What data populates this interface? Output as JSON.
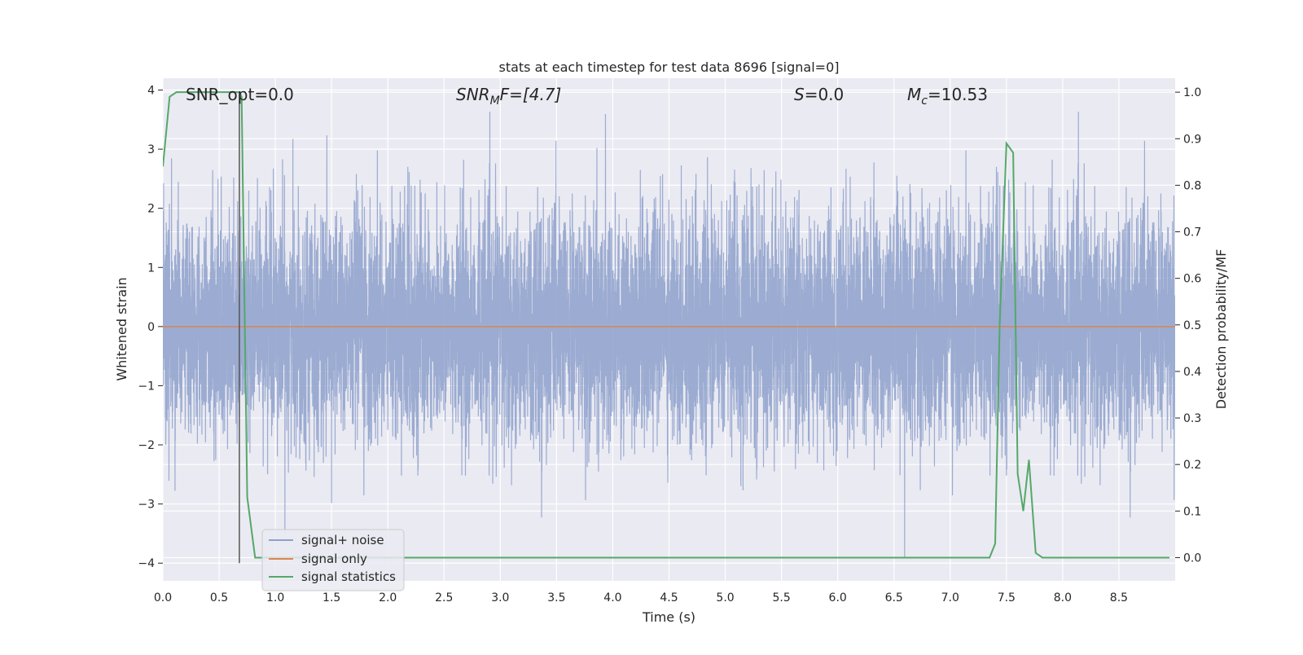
{
  "chart_data": {
    "type": "line",
    "title": "stats at each timestep for test data 8696 [signal=0]",
    "xlabel": "Time (s)",
    "ylabel": "Whitened strain",
    "y2label": "Detection probability/MF",
    "xlim": [
      0.0,
      9.0
    ],
    "ylim": [
      -4.3,
      4.2
    ],
    "y2lim": [
      -0.05,
      1.03
    ],
    "x_ticks": [
      "0.0",
      "0.5",
      "1.0",
      "1.5",
      "2.0",
      "2.5",
      "3.0",
      "3.5",
      "4.0",
      "4.5",
      "5.0",
      "5.5",
      "6.0",
      "6.5",
      "7.0",
      "7.5",
      "8.0",
      "8.5"
    ],
    "y_ticks": [
      "4",
      "3",
      "2",
      "1",
      "0",
      "−1",
      "−2",
      "−3",
      "−4"
    ],
    "y2_ticks": [
      "1.0",
      "0.9",
      "0.8",
      "0.7",
      "0.6",
      "0.5",
      "0.4",
      "0.3",
      "0.2",
      "0.1",
      "0.0"
    ],
    "grid": true,
    "legend_position": "lower-left",
    "annotations": {
      "snr_opt": "SNR_opt=0.0",
      "snr_mf_main": "SNR",
      "snr_mf_sub": "M",
      "snr_mf_rest": "F=[4.7]",
      "s_main": "S",
      "s_rest": "=0.0",
      "mc_main": "M",
      "mc_sub": "c",
      "mc_rest": "=10.53"
    },
    "marker_line_x": 0.68,
    "series": [
      {
        "name": "signal+ noise",
        "color": "#8da0cb",
        "axis": "left",
        "description_values": "dense whitened noise, amplitude mostly within ±2.4, spikes up to about ±3.6",
        "sample_rate_hz": 2048,
        "approx_std": 0.95
      },
      {
        "name": "signal only",
        "color": "#dd8452",
        "axis": "left",
        "x": [
          0.0,
          9.0
        ],
        "y": [
          0.0,
          0.0
        ]
      },
      {
        "name": "signal statistics",
        "color": "#55a868",
        "axis": "right",
        "x": [
          0.0,
          0.06,
          0.12,
          0.2,
          0.4,
          0.6,
          0.68,
          0.7,
          0.75,
          0.82,
          1.0,
          2.0,
          3.0,
          4.0,
          5.0,
          6.0,
          7.0,
          7.35,
          7.4,
          7.44,
          7.5,
          7.56,
          7.6,
          7.65,
          7.7,
          7.76,
          7.82,
          7.88,
          8.0,
          8.5,
          8.95
        ],
        "y": [
          0.84,
          0.99,
          1.0,
          1.0,
          1.0,
          1.0,
          1.0,
          0.99,
          0.13,
          0.0,
          0.0,
          0.0,
          0.0,
          0.0,
          0.0,
          0.0,
          0.0,
          0.0,
          0.03,
          0.5,
          0.89,
          0.87,
          0.18,
          0.1,
          0.21,
          0.01,
          0.0,
          0.0,
          0.0,
          0.0,
          0.0
        ]
      }
    ]
  }
}
